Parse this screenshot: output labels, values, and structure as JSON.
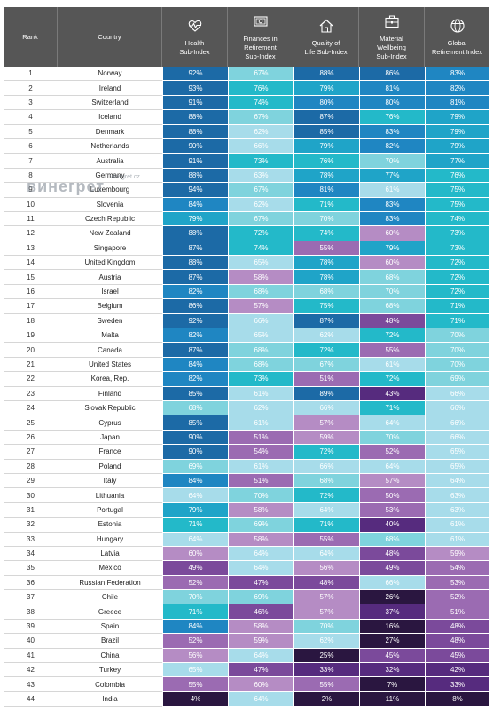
{
  "chart_data": {
    "type": "table",
    "columns": [
      "Rank",
      "Country",
      "Health Sub-Index",
      "Finances in Retirement Sub-Index",
      "Quality of Life Sub-Index",
      "Material Wellbeing Sub-Index",
      "Global Retirement Index"
    ],
    "header_lines": [
      [
        "Rank"
      ],
      [
        "Country"
      ],
      [
        "Health",
        "Sub-Index"
      ],
      [
        "Finances in",
        "Retirement",
        "Sub-Index"
      ],
      [
        "Quality of",
        "Life Sub-Index"
      ],
      [
        "Material",
        "Wellbeing",
        "Sub-Index"
      ],
      [
        "Global",
        "Retirement Index"
      ]
    ],
    "header_icons": [
      "",
      "",
      "heart-pulse-icon",
      "banknote-icon",
      "house-icon",
      "briefcase-icon",
      "globe-icon"
    ],
    "value_format": "percent",
    "rows": [
      {
        "rank": 1,
        "country": "Norway",
        "values": [
          92,
          67,
          88,
          86,
          83
        ]
      },
      {
        "rank": 2,
        "country": "Ireland",
        "values": [
          93,
          76,
          79,
          81,
          82
        ]
      },
      {
        "rank": 3,
        "country": "Switzerland",
        "values": [
          91,
          74,
          80,
          80,
          81
        ]
      },
      {
        "rank": 4,
        "country": "Iceland",
        "values": [
          88,
          67,
          87,
          76,
          79
        ]
      },
      {
        "rank": 5,
        "country": "Denmark",
        "values": [
          88,
          62,
          85,
          83,
          79
        ]
      },
      {
        "rank": 6,
        "country": "Netherlands",
        "values": [
          90,
          66,
          79,
          82,
          79
        ]
      },
      {
        "rank": 7,
        "country": "Australia",
        "values": [
          91,
          73,
          76,
          70,
          77
        ]
      },
      {
        "rank": 8,
        "country": "Germany",
        "values": [
          88,
          63,
          78,
          77,
          76
        ]
      },
      {
        "rank": 9,
        "country": "Luxembourg",
        "values": [
          94,
          67,
          81,
          61,
          75
        ]
      },
      {
        "rank": 10,
        "country": "Slovenia",
        "values": [
          84,
          62,
          71,
          83,
          75
        ]
      },
      {
        "rank": 11,
        "country": "Czech Republic",
        "values": [
          79,
          67,
          70,
          83,
          74
        ]
      },
      {
        "rank": 12,
        "country": "New Zealand",
        "values": [
          88,
          72,
          74,
          60,
          73
        ]
      },
      {
        "rank": 13,
        "country": "Singapore",
        "values": [
          87,
          74,
          55,
          79,
          73
        ]
      },
      {
        "rank": 14,
        "country": "United Kingdom",
        "values": [
          88,
          65,
          78,
          60,
          72
        ]
      },
      {
        "rank": 15,
        "country": "Austria",
        "values": [
          87,
          58,
          78,
          68,
          72
        ]
      },
      {
        "rank": 16,
        "country": "Israel",
        "values": [
          82,
          68,
          68,
          70,
          72
        ]
      },
      {
        "rank": 17,
        "country": "Belgium",
        "values": [
          86,
          57,
          75,
          68,
          71
        ]
      },
      {
        "rank": 18,
        "country": "Sweden",
        "values": [
          92,
          66,
          87,
          48,
          71
        ]
      },
      {
        "rank": 19,
        "country": "Malta",
        "values": [
          82,
          65,
          62,
          72,
          70
        ]
      },
      {
        "rank": 20,
        "country": "Canada",
        "values": [
          87,
          68,
          72,
          55,
          70
        ]
      },
      {
        "rank": 21,
        "country": "United States",
        "values": [
          84,
          68,
          67,
          61,
          70
        ]
      },
      {
        "rank": 22,
        "country": "Korea, Rep.",
        "values": [
          82,
          73,
          51,
          72,
          69
        ]
      },
      {
        "rank": 23,
        "country": "Finland",
        "values": [
          85,
          61,
          89,
          43,
          66
        ]
      },
      {
        "rank": 24,
        "country": "Slovak Republic",
        "values": [
          68,
          62,
          66,
          71,
          66
        ]
      },
      {
        "rank": 25,
        "country": "Cyprus",
        "values": [
          85,
          61,
          57,
          64,
          66
        ]
      },
      {
        "rank": 26,
        "country": "Japan",
        "values": [
          90,
          51,
          59,
          70,
          66
        ]
      },
      {
        "rank": 27,
        "country": "France",
        "values": [
          90,
          54,
          72,
          52,
          65
        ]
      },
      {
        "rank": 28,
        "country": "Poland",
        "values": [
          69,
          61,
          66,
          64,
          65
        ]
      },
      {
        "rank": 29,
        "country": "Italy",
        "values": [
          84,
          51,
          68,
          57,
          64
        ]
      },
      {
        "rank": 30,
        "country": "Lithuania",
        "values": [
          64,
          70,
          72,
          50,
          63
        ]
      },
      {
        "rank": 31,
        "country": "Portugal",
        "values": [
          79,
          58,
          64,
          53,
          63
        ]
      },
      {
        "rank": 32,
        "country": "Estonia",
        "values": [
          71,
          69,
          71,
          40,
          61
        ]
      },
      {
        "rank": 33,
        "country": "Hungary",
        "values": [
          64,
          58,
          55,
          68,
          61
        ]
      },
      {
        "rank": 34,
        "country": "Latvia",
        "values": [
          60,
          64,
          64,
          48,
          59
        ]
      },
      {
        "rank": 35,
        "country": "Mexico",
        "values": [
          49,
          64,
          56,
          49,
          54
        ]
      },
      {
        "rank": 36,
        "country": "Russian Federation",
        "values": [
          52,
          47,
          48,
          66,
          53
        ]
      },
      {
        "rank": 37,
        "country": "Chile",
        "values": [
          70,
          69,
          57,
          26,
          52
        ]
      },
      {
        "rank": 38,
        "country": "Greece",
        "values": [
          71,
          46,
          57,
          37,
          51
        ]
      },
      {
        "rank": 39,
        "country": "Spain",
        "values": [
          84,
          58,
          70,
          16,
          48
        ]
      },
      {
        "rank": 40,
        "country": "Brazil",
        "values": [
          52,
          59,
          62,
          27,
          48
        ]
      },
      {
        "rank": 41,
        "country": "China",
        "values": [
          56,
          64,
          25,
          45,
          45
        ]
      },
      {
        "rank": 42,
        "country": "Turkey",
        "values": [
          65,
          47,
          33,
          32,
          42
        ]
      },
      {
        "rank": 43,
        "country": "Colombia",
        "values": [
          55,
          60,
          55,
          7,
          33
        ]
      },
      {
        "rank": 44,
        "country": "India",
        "values": [
          4,
          64,
          2,
          11,
          8
        ]
      }
    ],
    "color_scale": [
      {
        "min": 85,
        "color": "#1c6aa6"
      },
      {
        "min": 80,
        "color": "#1f86c2"
      },
      {
        "min": 77,
        "color": "#1fa4c8"
      },
      {
        "min": 71,
        "color": "#23b9c9"
      },
      {
        "min": 67,
        "color": "#7fd3dd"
      },
      {
        "min": 61,
        "color": "#a7dcea"
      },
      {
        "min": 56,
        "color": "#b58cc4"
      },
      {
        "min": 50,
        "color": "#9b6bb2"
      },
      {
        "min": 45,
        "color": "#7b4a9b"
      },
      {
        "min": 30,
        "color": "#562b7e"
      },
      {
        "min": 0,
        "color": "#2a1640"
      }
    ],
    "header_background": "#565656",
    "row_background_odd": "#ffffff",
    "row_background_even": "#ffffff"
  },
  "watermark": {
    "main": "винегрет",
    "small": "vinegret.cz"
  }
}
